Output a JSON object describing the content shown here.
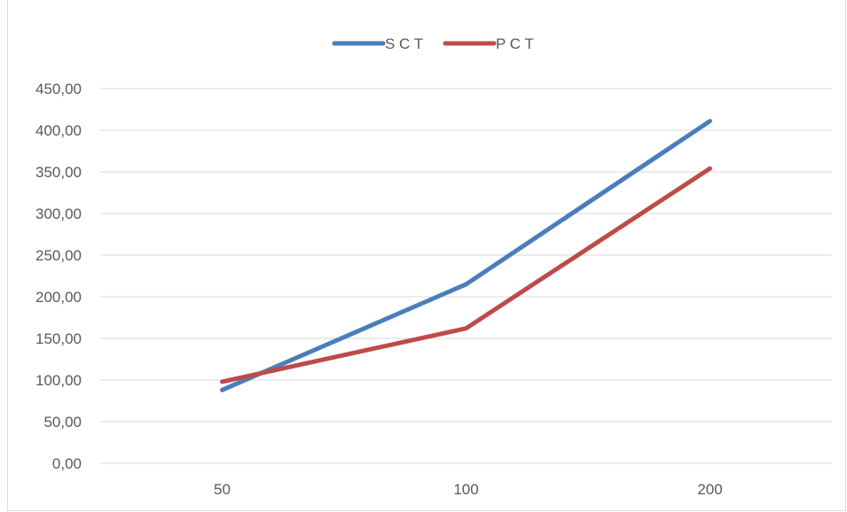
{
  "chart_data": {
    "type": "line",
    "categories": [
      "50",
      "100",
      "200"
    ],
    "series": [
      {
        "name": "S C T",
        "color": "#4a7ebb",
        "values": [
          88,
          215,
          411
        ]
      },
      {
        "name": "P C T",
        "color": "#be4b48",
        "values": [
          98,
          162,
          354
        ]
      }
    ],
    "ylim": [
      0,
      450
    ],
    "yticks": [
      0,
      50,
      100,
      150,
      200,
      250,
      300,
      350,
      400,
      450
    ],
    "ytick_labels": [
      "0,00",
      "50,00",
      "100,00",
      "150,00",
      "200,00",
      "250,00",
      "300,00",
      "350,00",
      "400,00",
      "450,00"
    ],
    "grid": true,
    "legend_position": "top-center",
    "title": "",
    "xlabel": "",
    "ylabel": ""
  }
}
